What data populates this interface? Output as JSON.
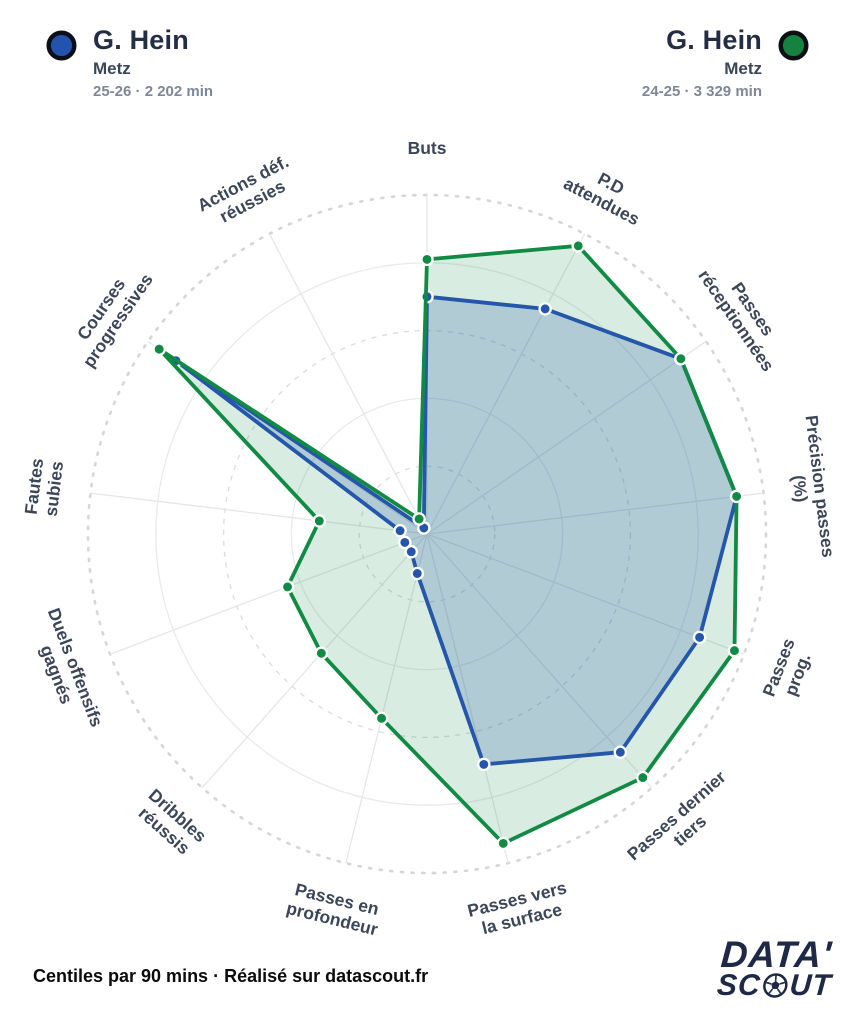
{
  "header": {
    "left": {
      "player": "G. Hein",
      "team": "Metz",
      "season_minutes": "25-26 · 2 202 min",
      "color": "#2353ae",
      "outline": "#0d0f16"
    },
    "right": {
      "player": "G. Hein",
      "team": "Metz",
      "season_minutes": "24-25 · 3 329 min",
      "color": "#15823f",
      "outline": "#0d0f16"
    }
  },
  "chart_data": {
    "type": "radar",
    "title": "",
    "scale": "percentile 0-100",
    "max": 100,
    "axis_count": 13,
    "legend_position": "top",
    "rings": [
      {
        "value": 20,
        "style": "dashed"
      },
      {
        "value": 40,
        "style": "solid"
      },
      {
        "value": 60,
        "style": "dashed"
      },
      {
        "value": 80,
        "style": "solid"
      },
      {
        "value": 100,
        "style": "outer-dashed"
      }
    ],
    "categories": [
      [
        "Buts"
      ],
      [
        "P.D",
        "attendues"
      ],
      [
        "Passes",
        "réceptionnées"
      ],
      [
        "Précision passes",
        "(%)"
      ],
      [
        "Passes",
        "prog."
      ],
      [
        "Passes dernier",
        "tiers"
      ],
      [
        "Passes vers",
        "la surface"
      ],
      [
        "Passes en",
        "profondeur"
      ],
      [
        "Dribbles",
        "réussis"
      ],
      [
        "Duels offensifs",
        "gagnés"
      ],
      [
        "Fautes",
        "subies"
      ],
      [
        "Courses",
        "progressives"
      ],
      [
        "Actions déf.",
        "réussies"
      ]
    ],
    "series": [
      {
        "name": "G. Hein · Metz · 25-26 · 2 202 min",
        "color": "#2456aa",
        "fill_opacity": 0.22,
        "values": [
          70,
          75,
          91,
          92,
          86,
          86,
          70,
          12,
          7,
          7,
          8,
          90,
          2
        ]
      },
      {
        "name": "G. Hein · Metz · 24-25 · 3 329 min",
        "color": "#118a43",
        "fill_opacity": 0.16,
        "values": [
          81,
          96,
          91,
          92,
          97,
          96,
          94,
          56,
          47,
          44,
          32,
          96,
          5
        ]
      }
    ]
  },
  "footer": {
    "note": "Centiles par 90 mins · Réalisé sur datascout.fr"
  },
  "logo": {
    "line1": "DATA'",
    "line2_pre": "SC",
    "line2_post": "UT"
  }
}
